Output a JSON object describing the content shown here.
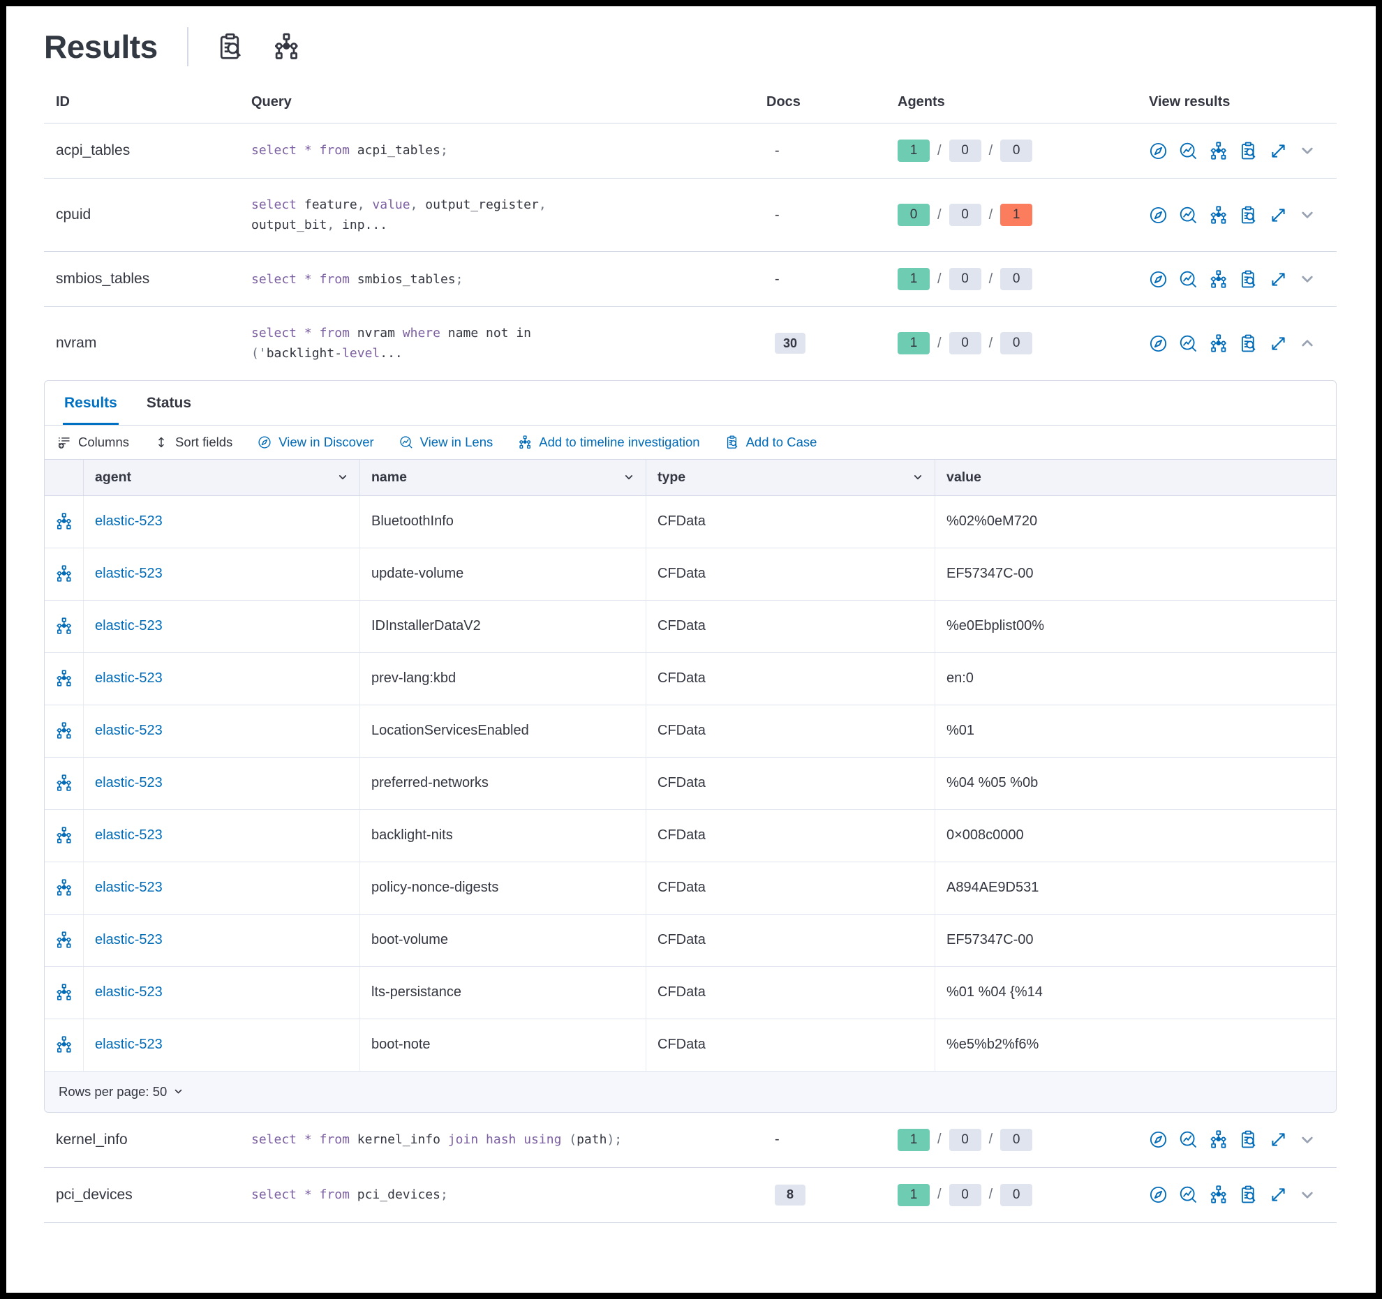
{
  "header": {
    "title": "Results"
  },
  "table": {
    "columns": {
      "id": "ID",
      "query": "Query",
      "docs": "Docs",
      "agents": "Agents",
      "view": "View results"
    }
  },
  "queries": [
    {
      "id": "acpi_tables",
      "docs": "-",
      "docs_badge": false,
      "expanded": false,
      "query": [
        [
          [
            "kw",
            "select"
          ],
          [
            "pl",
            " "
          ],
          [
            "kw",
            "*"
          ],
          [
            "pl",
            " "
          ],
          [
            "kw",
            "from"
          ],
          [
            "pl",
            " acpi_tables"
          ],
          [
            "pun",
            ";"
          ]
        ]
      ],
      "agents": [
        [
          "1",
          "green"
        ],
        [
          "0",
          "gray"
        ],
        [
          "0",
          "gray"
        ]
      ]
    },
    {
      "id": "cpuid",
      "docs": "-",
      "docs_badge": false,
      "expanded": false,
      "query": [
        [
          [
            "kw",
            "select"
          ],
          [
            "pl",
            " feature"
          ],
          [
            "pun",
            ","
          ],
          [
            "pl",
            " "
          ],
          [
            "kw",
            "value"
          ],
          [
            "pun",
            ","
          ],
          [
            "pl",
            " output_register"
          ],
          [
            "pun",
            ","
          ]
        ],
        [
          [
            "pl",
            "output_bit"
          ],
          [
            "pun",
            ","
          ],
          [
            "pl",
            " inp..."
          ]
        ]
      ],
      "agents": [
        [
          "0",
          "green"
        ],
        [
          "0",
          "gray"
        ],
        [
          "1",
          "red"
        ]
      ]
    },
    {
      "id": "smbios_tables",
      "docs": "-",
      "docs_badge": false,
      "expanded": false,
      "query": [
        [
          [
            "kw",
            "select"
          ],
          [
            "pl",
            " "
          ],
          [
            "kw",
            "*"
          ],
          [
            "pl",
            " "
          ],
          [
            "kw",
            "from"
          ],
          [
            "pl",
            " smbios_tables"
          ],
          [
            "pun",
            ";"
          ]
        ]
      ],
      "agents": [
        [
          "1",
          "green"
        ],
        [
          "0",
          "gray"
        ],
        [
          "0",
          "gray"
        ]
      ]
    },
    {
      "id": "nvram",
      "docs": "30",
      "docs_badge": true,
      "expanded": true,
      "query": [
        [
          [
            "kw",
            "select"
          ],
          [
            "pl",
            " "
          ],
          [
            "kw",
            "*"
          ],
          [
            "pl",
            " "
          ],
          [
            "kw",
            "from"
          ],
          [
            "pl",
            " nvram "
          ],
          [
            "kw",
            "where"
          ],
          [
            "pl",
            " name not in"
          ]
        ],
        [
          [
            "pun",
            "('"
          ],
          [
            "pl",
            "backlight-"
          ],
          [
            "kw",
            "level"
          ],
          [
            "pl",
            "..."
          ]
        ]
      ],
      "agents": [
        [
          "1",
          "green"
        ],
        [
          "0",
          "gray"
        ],
        [
          "0",
          "gray"
        ]
      ]
    },
    {
      "id": "kernel_info",
      "docs": "-",
      "docs_badge": false,
      "expanded": false,
      "query": [
        [
          [
            "kw",
            "select"
          ],
          [
            "pl",
            " "
          ],
          [
            "kw",
            "*"
          ],
          [
            "pl",
            " "
          ],
          [
            "kw",
            "from"
          ],
          [
            "pl",
            " kernel_info "
          ],
          [
            "kw",
            "join"
          ],
          [
            "pl",
            " "
          ],
          [
            "kw",
            "hash"
          ],
          [
            "pl",
            " "
          ],
          [
            "kw",
            "using"
          ],
          [
            "pl",
            " "
          ],
          [
            "pun",
            "("
          ],
          [
            "pl",
            "path"
          ],
          [
            "pun",
            ");"
          ]
        ]
      ],
      "agents": [
        [
          "1",
          "green"
        ],
        [
          "0",
          "gray"
        ],
        [
          "0",
          "gray"
        ]
      ]
    },
    {
      "id": "pci_devices",
      "docs": "8",
      "docs_badge": true,
      "expanded": false,
      "query": [
        [
          [
            "kw",
            "select"
          ],
          [
            "pl",
            " "
          ],
          [
            "kw",
            "*"
          ],
          [
            "pl",
            " "
          ],
          [
            "kw",
            "from"
          ],
          [
            "pl",
            " pci_devices"
          ],
          [
            "pun",
            ";"
          ]
        ]
      ],
      "agents": [
        [
          "1",
          "green"
        ],
        [
          "0",
          "gray"
        ],
        [
          "0",
          "gray"
        ]
      ]
    }
  ],
  "panel": {
    "tabs": [
      {
        "label": "Results",
        "active": true
      },
      {
        "label": "Status",
        "active": false
      }
    ],
    "toolbar": [
      {
        "label": "Columns"
      },
      {
        "label": "Sort fields"
      },
      {
        "label": "View in Discover"
      },
      {
        "label": "View in Lens"
      },
      {
        "label": "Add to timeline investigation"
      },
      {
        "label": "Add to Case"
      }
    ],
    "grid": {
      "columns": [
        "agent",
        "name",
        "type",
        "value"
      ],
      "rows": [
        {
          "agent": "elastic-523",
          "name": "BluetoothInfo",
          "type": "CFData",
          "value": "%02%0eM720"
        },
        {
          "agent": "elastic-523",
          "name": "update-volume",
          "type": "CFData",
          "value": "EF57347C-00"
        },
        {
          "agent": "elastic-523",
          "name": "IDInstallerDataV2",
          "type": "CFData",
          "value": "%e0Ebplist00%"
        },
        {
          "agent": "elastic-523",
          "name": "prev-lang:kbd",
          "type": "CFData",
          "value": "en:0"
        },
        {
          "agent": "elastic-523",
          "name": "LocationServicesEnabled",
          "type": "CFData",
          "value": "%01"
        },
        {
          "agent": "elastic-523",
          "name": "preferred-networks",
          "type": "CFData",
          "value": "%04 %05 %0b"
        },
        {
          "agent": "elastic-523",
          "name": "backlight-nits",
          "type": "CFData",
          "value": "0×008c0000"
        },
        {
          "agent": "elastic-523",
          "name": "policy-nonce-digests",
          "type": "CFData",
          "value": "A894AE9D531"
        },
        {
          "agent": "elastic-523",
          "name": "boot-volume",
          "type": "CFData",
          "value": "EF57347C-00"
        },
        {
          "agent": "elastic-523",
          "name": "lts-persistance",
          "type": "CFData",
          "value": "%01 %04 {%14"
        },
        {
          "agent": "elastic-523",
          "name": "boot-note",
          "type": "CFData",
          "value": "%e5%b2%f6%"
        }
      ],
      "footer_label": "Rows per page: 50"
    }
  },
  "icons": {
    "header_actions": [
      "inspect-icon",
      "timeline-icon"
    ],
    "view_results_actions": [
      "discover-icon",
      "lens-icon",
      "timeline-icon",
      "add-to-case-icon",
      "expand-icon",
      "chevron-down-icon"
    ],
    "toolbar": [
      "columns-icon",
      "sort-fields-icon",
      "discover-icon",
      "lens-icon",
      "timeline-icon",
      "add-to-case-icon"
    ]
  },
  "colors": {
    "link_blue": "#006bb8",
    "tab_active_blue": "#0071c2",
    "keyword_purple": "#7b5fa0",
    "badge_green": "#6dccb1",
    "badge_gray": "#e0e4ee",
    "badge_red": "#fc7d5e",
    "border_gray": "#d3dae6",
    "text_dark": "#343741"
  }
}
